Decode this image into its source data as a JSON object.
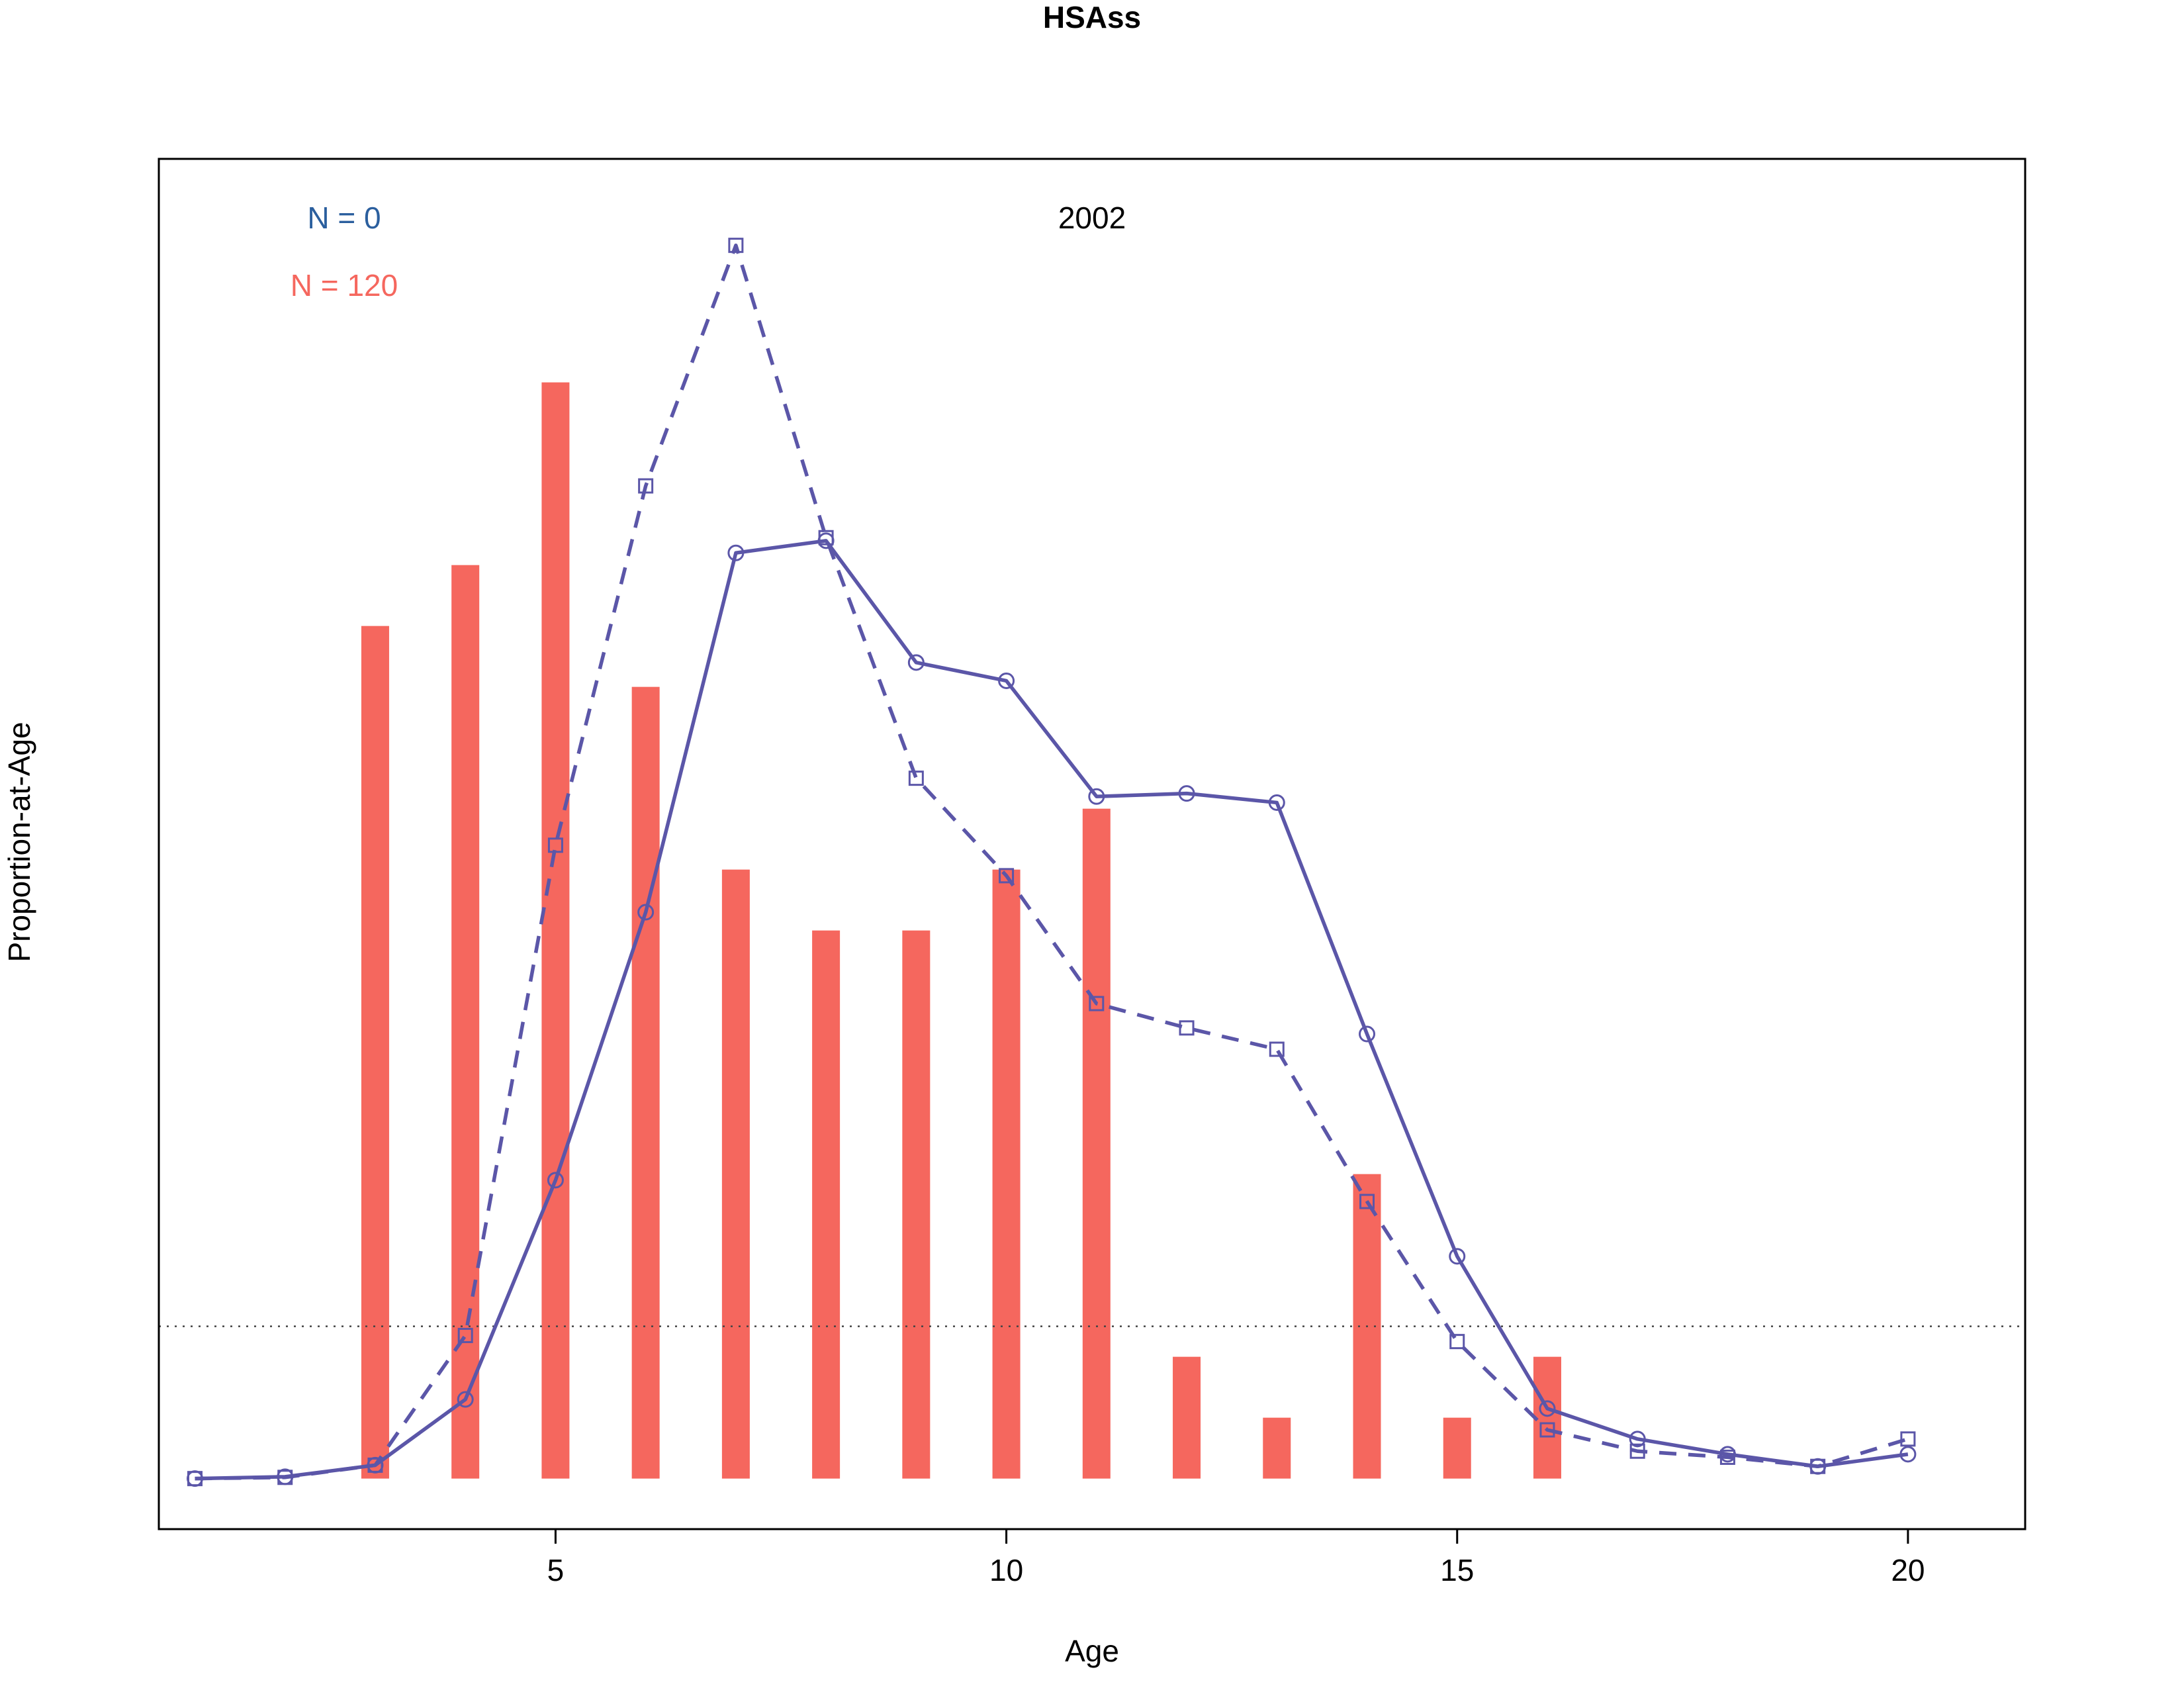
{
  "chart_data": {
    "type": "bar",
    "title": "HSAss",
    "xlabel": "Age",
    "ylabel": "Proportion-at-Age",
    "year_label": "2002",
    "annotations": [
      {
        "text": "N = 0",
        "color": "#2b5f9e"
      },
      {
        "text": "N = 120",
        "color": "#f5675e"
      }
    ],
    "xlim": [
      0.6,
      21.3
    ],
    "ylim": [
      -0.0083,
      0.2167
    ],
    "x_ticks": [
      5,
      10,
      15,
      20
    ],
    "reference_line_y": 0.025,
    "grid": false,
    "bar_color": "#f5675e",
    "line_color": "#5b56a8",
    "bars": {
      "name": "",
      "x": [
        3,
        4,
        5,
        6,
        7,
        8,
        9,
        10,
        11,
        12,
        13,
        14,
        15,
        16
      ],
      "values": [
        0.14,
        0.15,
        0.18,
        0.13,
        0.1,
        0.09,
        0.09,
        0.1,
        0.11,
        0.02,
        0.01,
        0.05,
        0.01,
        0.02
      ]
    },
    "series": [
      {
        "name": "",
        "style": "solid",
        "marker": "circle",
        "x": [
          1,
          2,
          3,
          4,
          5,
          6,
          7,
          8,
          9,
          10,
          11,
          12,
          13,
          14,
          15,
          16,
          17,
          18,
          19,
          20
        ],
        "values": [
          0.0,
          0.0003,
          0.0022,
          0.013,
          0.049,
          0.093,
          0.152,
          0.154,
          0.134,
          0.131,
          0.112,
          0.1125,
          0.111,
          0.073,
          0.0365,
          0.0115,
          0.0065,
          0.004,
          0.002,
          0.004
        ]
      },
      {
        "name": "",
        "style": "dashed",
        "marker": "square",
        "x": [
          1,
          2,
          3,
          4,
          5,
          6,
          7,
          8,
          9,
          10,
          11,
          12,
          13,
          14,
          15,
          16,
          17,
          18,
          19,
          20
        ],
        "values": [
          0.0,
          0.0002,
          0.0022,
          0.0235,
          0.104,
          0.163,
          0.2025,
          0.1545,
          0.115,
          0.099,
          0.078,
          0.074,
          0.0705,
          0.0455,
          0.0225,
          0.008,
          0.0045,
          0.0035,
          0.002,
          0.0065
        ]
      }
    ]
  }
}
